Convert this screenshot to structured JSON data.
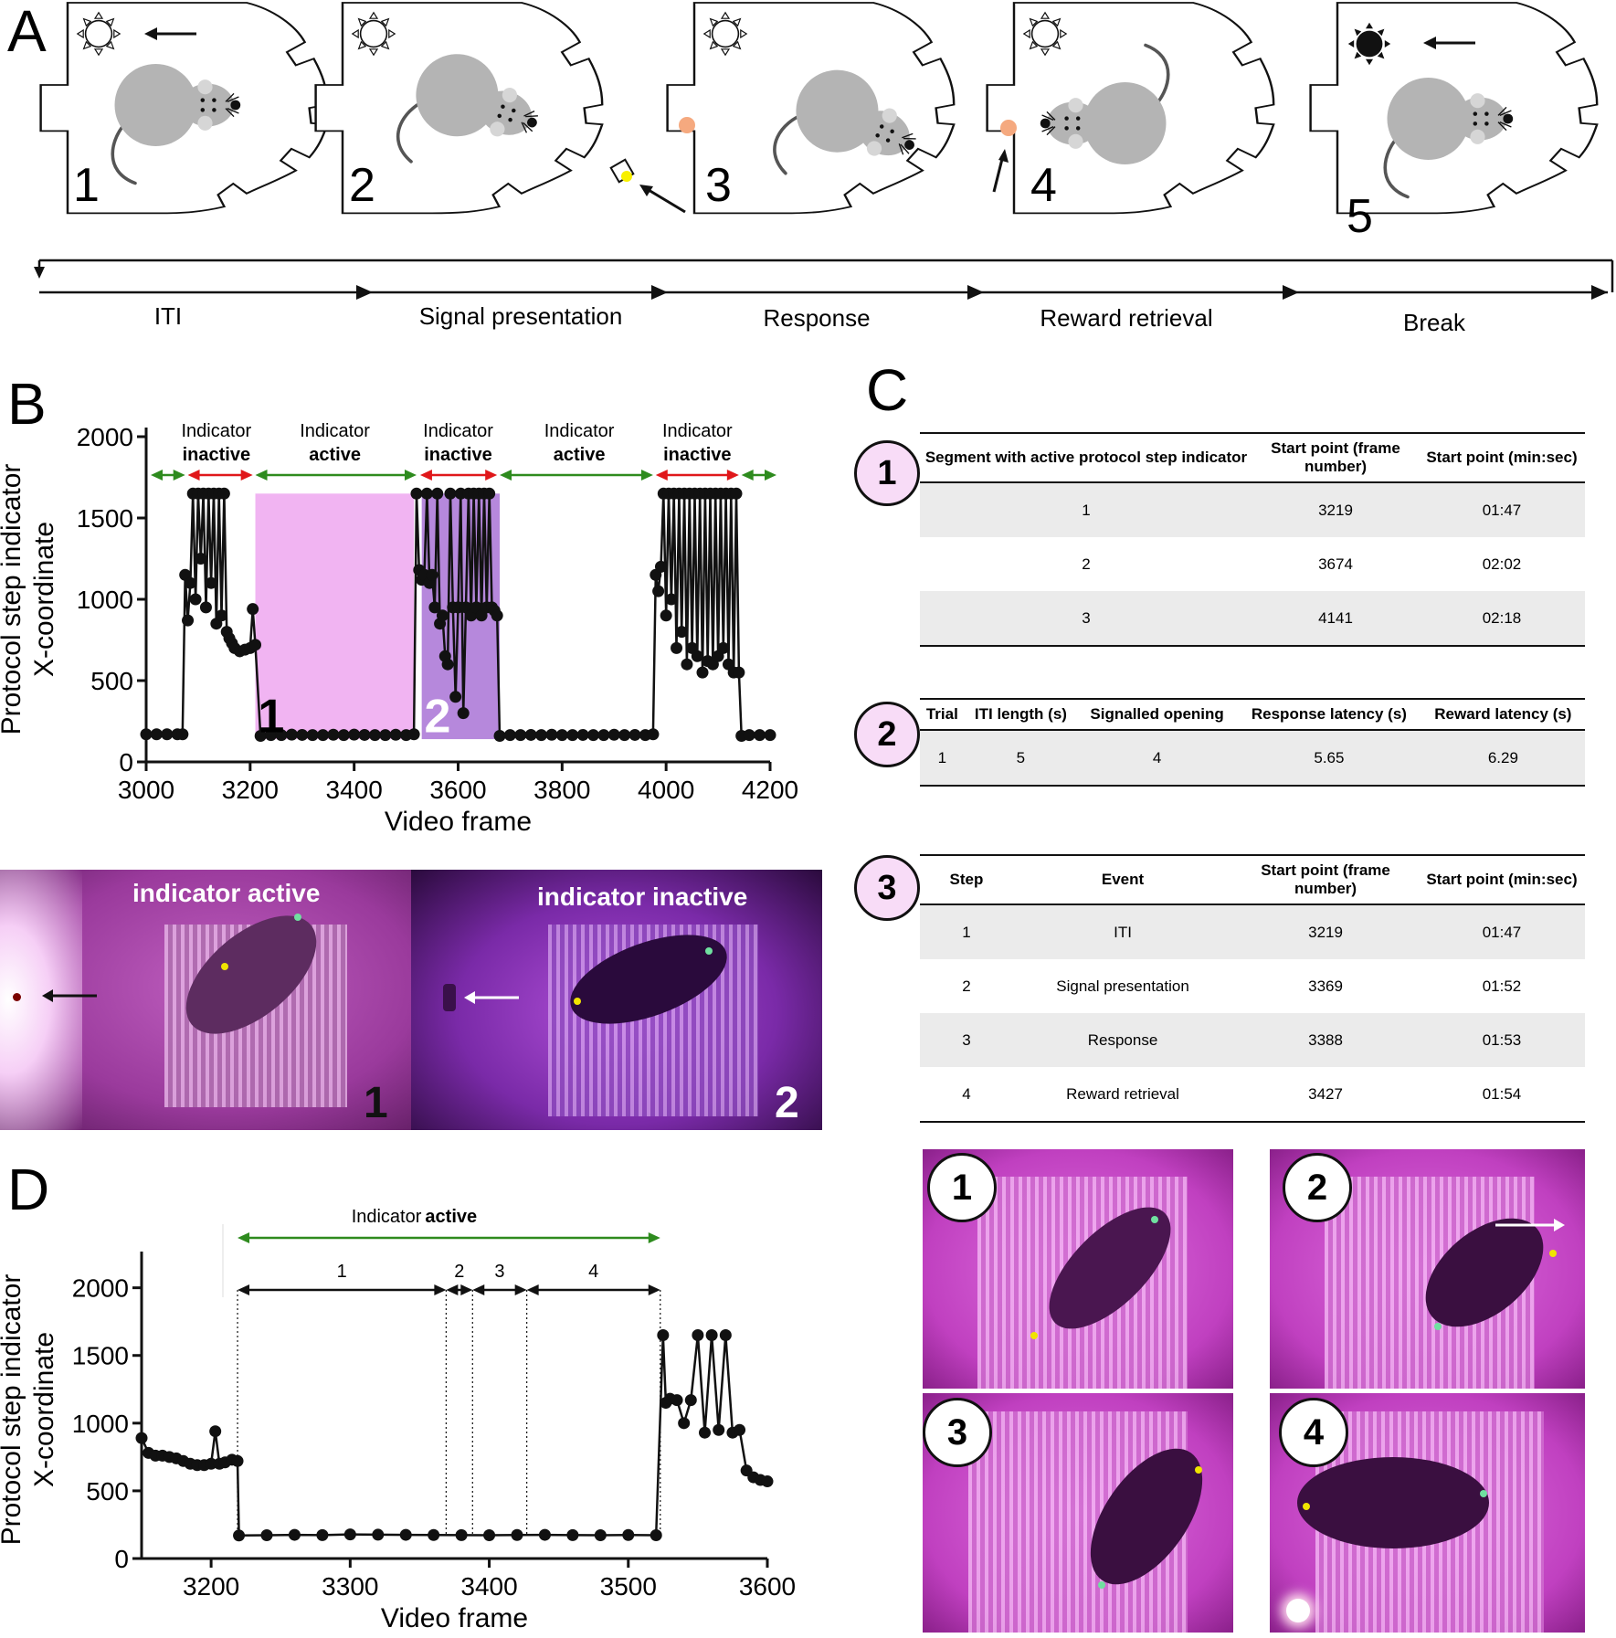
{
  "panels": {
    "a": "A",
    "b": "B",
    "c": "C",
    "d": "D"
  },
  "panel_a": {
    "steps": [
      {
        "number": "1",
        "phase": "ITI"
      },
      {
        "number": "2",
        "phase": "Signal presentation"
      },
      {
        "number": "3",
        "phase": "Response"
      },
      {
        "number": "4",
        "phase": "Reward retrieval"
      },
      {
        "number": "5",
        "phase": "Break"
      }
    ]
  },
  "panel_b": {
    "photo_left_label": "indicator active",
    "photo_left_number": "1",
    "photo_right_label": "indicator inactive",
    "photo_right_number": "2",
    "segment_labels": [
      {
        "top": "Indicator",
        "bottom": "inactive"
      },
      {
        "top": "Indicator",
        "bottom": "active"
      },
      {
        "top": "Indicator",
        "bottom": "inactive"
      },
      {
        "top": "Indicator",
        "bottom": "active"
      },
      {
        "top": "Indicator",
        "bottom": "inactive"
      }
    ],
    "region_labels": [
      "1",
      "2"
    ]
  },
  "panel_c": {
    "table1": {
      "badge": "1",
      "headers": [
        "Segment with active protocol step indicator",
        "Start point (frame number)",
        "Start point (min:sec)"
      ],
      "rows": [
        [
          "1",
          "3219",
          "01:47"
        ],
        [
          "2",
          "3674",
          "02:02"
        ],
        [
          "3",
          "4141",
          "02:18"
        ]
      ]
    },
    "table2": {
      "badge": "2",
      "headers": [
        "Trial",
        "ITI length (s)",
        "Signalled opening",
        "Response latency (s)",
        "Reward latency (s)"
      ],
      "rows": [
        [
          "1",
          "5",
          "4",
          "5.65",
          "6.29"
        ]
      ]
    },
    "table3": {
      "badge": "3",
      "headers": [
        "Step",
        "Event",
        "Start point (frame number)",
        "Start point (min:sec)"
      ],
      "rows": [
        [
          "1",
          "ITI",
          "3219",
          "01:47"
        ],
        [
          "2",
          "Signal presentation",
          "3369",
          "01:52"
        ],
        [
          "3",
          "Response",
          "3388",
          "01:53"
        ],
        [
          "4",
          "Reward retrieval",
          "3427",
          "01:54"
        ]
      ]
    },
    "photos": [
      "1",
      "2",
      "3",
      "4"
    ]
  },
  "panel_d": {
    "header_top": "Indicator",
    "header_bottom": "active",
    "segment_numbers": [
      "1",
      "2",
      "3",
      "4"
    ]
  },
  "chart_data": [
    {
      "id": "B",
      "type": "line",
      "xlabel": "Video frame",
      "ylabel": "Protocol step indicator X-coordinate",
      "xlim": [
        3000,
        4200
      ],
      "ylim": [
        0,
        2000
      ],
      "xticks": [
        3000,
        3200,
        3400,
        3600,
        3800,
        4000,
        4200
      ],
      "yticks": [
        0,
        500,
        1000,
        1500,
        2000
      ],
      "shaded_regions": [
        {
          "label": "1",
          "x": [
            3210,
            3515
          ],
          "color": "#f1b4f2"
        },
        {
          "label": "2",
          "x": [
            3530,
            3680
          ],
          "color": "#b688dc"
        }
      ],
      "series": [
        {
          "x": [
            3000,
            3020,
            3040,
            3060,
            3070,
            3075,
            3080,
            3085,
            3090,
            3095,
            3100,
            3105,
            3110,
            3115,
            3120,
            3125,
            3130,
            3135,
            3140,
            3145,
            3150,
            3155,
            3160,
            3165,
            3170,
            3180,
            3190,
            3200,
            3205,
            3210,
            3220,
            3240,
            3260,
            3280,
            3300,
            3320,
            3340,
            3360,
            3380,
            3400,
            3420,
            3440,
            3460,
            3480,
            3500,
            3515,
            3520,
            3525,
            3530,
            3535,
            3540,
            3545,
            3550,
            3555,
            3560,
            3565,
            3570,
            3575,
            3580,
            3585,
            3590,
            3595,
            3600,
            3605,
            3610,
            3615,
            3620,
            3625,
            3630,
            3635,
            3640,
            3645,
            3650,
            3655,
            3660,
            3665,
            3670,
            3675,
            3680,
            3700,
            3720,
            3740,
            3760,
            3780,
            3800,
            3820,
            3840,
            3860,
            3880,
            3900,
            3920,
            3940,
            3960,
            3975,
            3980,
            3985,
            3990,
            3995,
            4000,
            4005,
            4010,
            4015,
            4020,
            4025,
            4030,
            4035,
            4040,
            4045,
            4050,
            4055,
            4060,
            4065,
            4070,
            4075,
            4080,
            4085,
            4090,
            4095,
            4100,
            4105,
            4110,
            4115,
            4120,
            4125,
            4130,
            4135,
            4140,
            4145,
            4160,
            4180,
            4200
          ],
          "y": [
            170,
            170,
            170,
            170,
            170,
            1150,
            870,
            1100,
            1650,
            1000,
            1650,
            1250,
            1650,
            950,
            1650,
            1100,
            1650,
            850,
            1650,
            900,
            1650,
            800,
            760,
            730,
            700,
            680,
            690,
            700,
            940,
            720,
            160,
            165,
            165,
            168,
            166,
            165,
            165,
            167,
            165,
            168,
            166,
            165,
            165,
            167,
            165,
            170,
            1650,
            1180,
            1120,
            1150,
            1650,
            1100,
            1150,
            950,
            1650,
            850,
            900,
            650,
            600,
            1650,
            950,
            400,
            950,
            1650,
            300,
            950,
            1650,
            900,
            1650,
            950,
            1650,
            900,
            1650,
            950,
            1650,
            950,
            930,
            900,
            160,
            165,
            165,
            166,
            165,
            167,
            165,
            165,
            166,
            165,
            165,
            167,
            165,
            166,
            165,
            170,
            1150,
            1050,
            1200,
            1650,
            900,
            1650,
            1000,
            1650,
            700,
            1650,
            800,
            1650,
            600,
            1650,
            700,
            1650,
            650,
            1650,
            550,
            1650,
            620,
            1650,
            600,
            1650,
            650,
            1650,
            700,
            1650,
            600,
            1650,
            550,
            1650,
            550,
            160,
            165,
            165,
            165
          ]
        }
      ]
    },
    {
      "id": "D",
      "type": "line",
      "xlabel": "Video frame",
      "ylabel": "Protocol step indicator X-coordinate",
      "xlim": [
        3150,
        3600
      ],
      "ylim": [
        0,
        2200
      ],
      "xticks": [
        3200,
        3300,
        3400,
        3500,
        3600
      ],
      "yticks": [
        0,
        500,
        1000,
        1500,
        2000
      ],
      "markers": [
        3219,
        3369,
        3388,
        3427,
        3523
      ],
      "series": [
        {
          "x": [
            3150,
            3155,
            3160,
            3165,
            3170,
            3175,
            3180,
            3185,
            3190,
            3195,
            3200,
            3203,
            3206,
            3210,
            3215,
            3219,
            3220,
            3240,
            3260,
            3280,
            3300,
            3320,
            3340,
            3360,
            3380,
            3400,
            3420,
            3440,
            3460,
            3480,
            3500,
            3520,
            3525,
            3527,
            3530,
            3535,
            3540,
            3545,
            3550,
            3555,
            3560,
            3565,
            3570,
            3575,
            3580,
            3585,
            3590,
            3595,
            3600
          ],
          "y": [
            890,
            780,
            760,
            760,
            750,
            740,
            720,
            700,
            690,
            690,
            700,
            940,
            700,
            710,
            730,
            720,
            170,
            172,
            175,
            173,
            178,
            176,
            175,
            174,
            173,
            172,
            174,
            175,
            173,
            172,
            174,
            172,
            1650,
            1150,
            1180,
            1170,
            1000,
            1170,
            1650,
            930,
            1650,
            950,
            1650,
            930,
            950,
            650,
            600,
            580,
            570
          ]
        }
      ]
    }
  ]
}
